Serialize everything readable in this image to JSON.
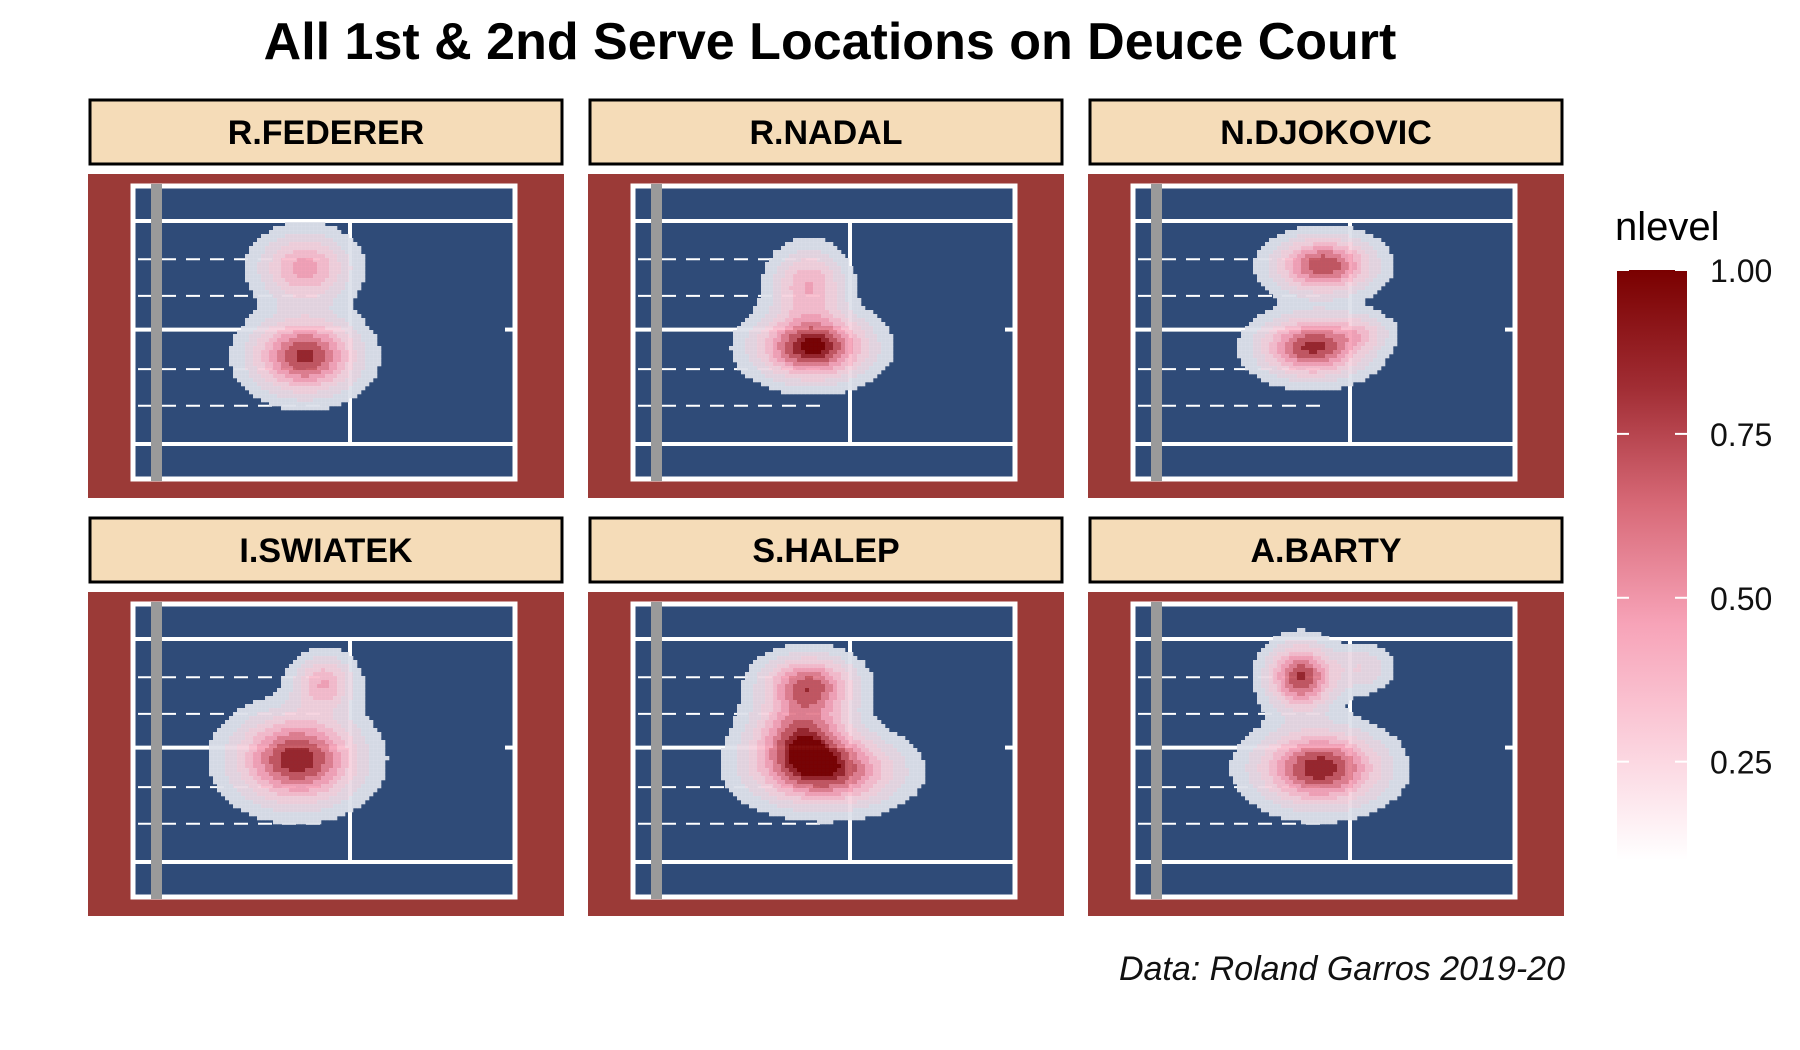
{
  "chart_data": {
    "type": "heatmap",
    "subtype": "2d-density-contour-facets",
    "title": "All 1st & 2nd Serve Locations on Deuce Court",
    "caption": "Data: Roland Garros 2019-20",
    "legend": {
      "title": "nlevel",
      "position": "right",
      "range": [
        0.1,
        1.0
      ],
      "ticks": [
        0.25,
        0.5,
        0.75,
        1.0
      ],
      "tick_labels": [
        "0.25",
        "0.50",
        "0.75",
        "1.00"
      ],
      "colors": [
        "#ffffff",
        "#fbd0dc",
        "#f7a3b8",
        "#d86a78",
        "#a12d34",
        "#7a0000"
      ]
    },
    "facet_layout": {
      "rows": 2,
      "cols": 3
    },
    "colors": {
      "surround": "#9b3a37",
      "court": "#2f4b78",
      "lines": "#ffffff",
      "net": "#9a9a9a",
      "strip_fill": "#f5dcb8",
      "strip_border": "#000000",
      "density_base": "#dde0ea"
    },
    "court_units": {
      "x_range": [
        0,
        1
      ],
      "y_range": [
        0,
        1
      ],
      "note_axes": ""
    },
    "panels": [
      {
        "name": "R.FEDERER",
        "blobs": [
          {
            "x": 0.45,
            "y": 0.72,
            "sx": 0.075,
            "sy": 0.075,
            "peak": 0.55
          },
          {
            "x": 0.45,
            "y": 0.42,
            "sx": 0.085,
            "sy": 0.08,
            "peak": 0.9
          }
        ]
      },
      {
        "name": "R.NADAL",
        "blobs": [
          {
            "x": 0.46,
            "y": 0.66,
            "sx": 0.06,
            "sy": 0.08,
            "peak": 0.5
          },
          {
            "x": 0.47,
            "y": 0.45,
            "sx": 0.09,
            "sy": 0.07,
            "peak": 1.0
          }
        ]
      },
      {
        "name": "N.DJOKOVIC",
        "blobs": [
          {
            "x": 0.5,
            "y": 0.73,
            "sx": 0.08,
            "sy": 0.06,
            "peak": 0.85
          },
          {
            "x": 0.47,
            "y": 0.45,
            "sx": 0.085,
            "sy": 0.065,
            "peak": 0.9
          },
          {
            "x": 0.6,
            "y": 0.5,
            "sx": 0.05,
            "sy": 0.04,
            "peak": 0.25
          }
        ]
      },
      {
        "name": "I.SWIATEK",
        "blobs": [
          {
            "x": 0.5,
            "y": 0.73,
            "sx": 0.05,
            "sy": 0.06,
            "peak": 0.5
          },
          {
            "x": 0.43,
            "y": 0.47,
            "sx": 0.1,
            "sy": 0.095,
            "peak": 0.95
          }
        ]
      },
      {
        "name": "S.HALEP",
        "blobs": [
          {
            "x": 0.46,
            "y": 0.72,
            "sx": 0.075,
            "sy": 0.065,
            "peak": 0.8
          },
          {
            "x": 0.44,
            "y": 0.55,
            "sx": 0.08,
            "sy": 0.075,
            "peak": 0.7
          },
          {
            "x": 0.5,
            "y": 0.43,
            "sx": 0.115,
            "sy": 0.075,
            "peak": 0.9
          }
        ]
      },
      {
        "name": "A.BARTY",
        "blobs": [
          {
            "x": 0.44,
            "y": 0.75,
            "sx": 0.055,
            "sy": 0.07,
            "peak": 0.88
          },
          {
            "x": 0.49,
            "y": 0.44,
            "sx": 0.1,
            "sy": 0.08,
            "peak": 0.95
          },
          {
            "x": 0.6,
            "y": 0.78,
            "sx": 0.05,
            "sy": 0.05,
            "peak": 0.25
          }
        ]
      }
    ]
  }
}
